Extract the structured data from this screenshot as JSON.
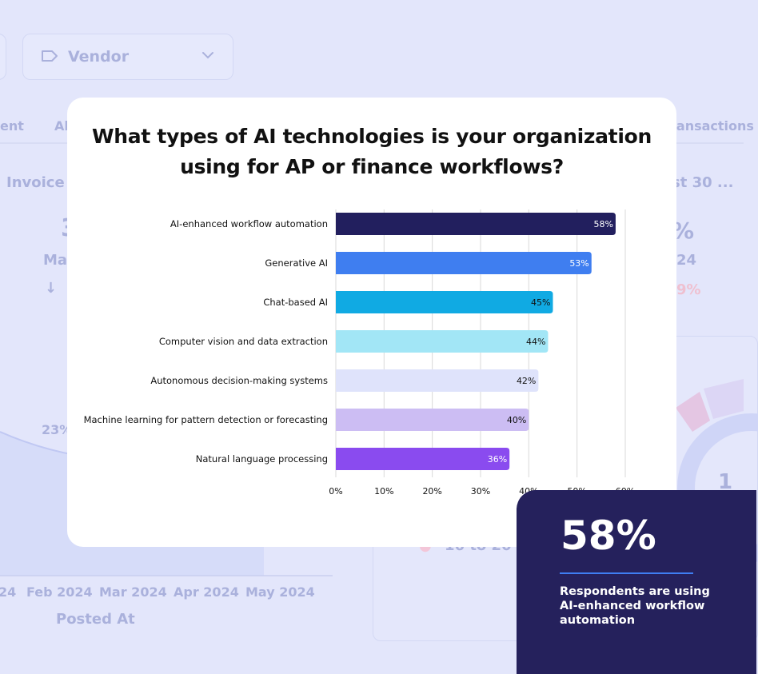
{
  "background": {
    "filter_label": "Vendor",
    "tabs": [
      "ent",
      "Al",
      "ransactions"
    ],
    "invoice_label": "Invoice D",
    "last_label": "st 30 ...",
    "metric_left_digit": "3",
    "metric_left_label": "Ma",
    "metric_right_pct": "%",
    "metric_right_year": "24",
    "metric_right_change": "9%",
    "area_pct": "23%",
    "months": [
      "24",
      "Feb 2024",
      "Mar 2024",
      "Apr 2024",
      "May 2024"
    ],
    "axis_title": "Posted At",
    "donut_legend": "16 to 20",
    "donut_center": "1"
  },
  "card": {
    "title": "What types of AI technologies is your organization using for AP or finance workflows?"
  },
  "chart_data": {
    "type": "bar",
    "orientation": "horizontal",
    "title": "What types of AI technologies is your organization using for AP or finance workflows?",
    "xlabel": "",
    "ylabel": "",
    "categories": [
      "AI-enhanced workflow automation",
      "Generative AI",
      "Chat-based AI",
      "Computer vision and data extraction",
      "Autonomous decision-making systems",
      "Machine learning for pattern detection or forecasting",
      "Natural language processing"
    ],
    "values": [
      58,
      53,
      45,
      44,
      42,
      40,
      36
    ],
    "data_labels": [
      "58%",
      "53%",
      "45%",
      "44%",
      "42%",
      "40%",
      "36%"
    ],
    "bar_colors": [
      "#221f5e",
      "#3f7ef0",
      "#10aae3",
      "#a2e6f6",
      "#dfe3fb",
      "#ccbdf3",
      "#8a4bef"
    ],
    "label_colors": [
      "#ffffff",
      "#ffffff",
      "#111111",
      "#111111",
      "#111111",
      "#111111",
      "#ffffff"
    ],
    "xlim": [
      0,
      60
    ],
    "xticks": [
      "0%",
      "10%",
      "20%",
      "30%",
      "40%",
      "50%",
      "60%"
    ],
    "grid": true
  },
  "callout": {
    "value": "58%",
    "text": "Respondents are using AI-enhanced workflow automation"
  }
}
